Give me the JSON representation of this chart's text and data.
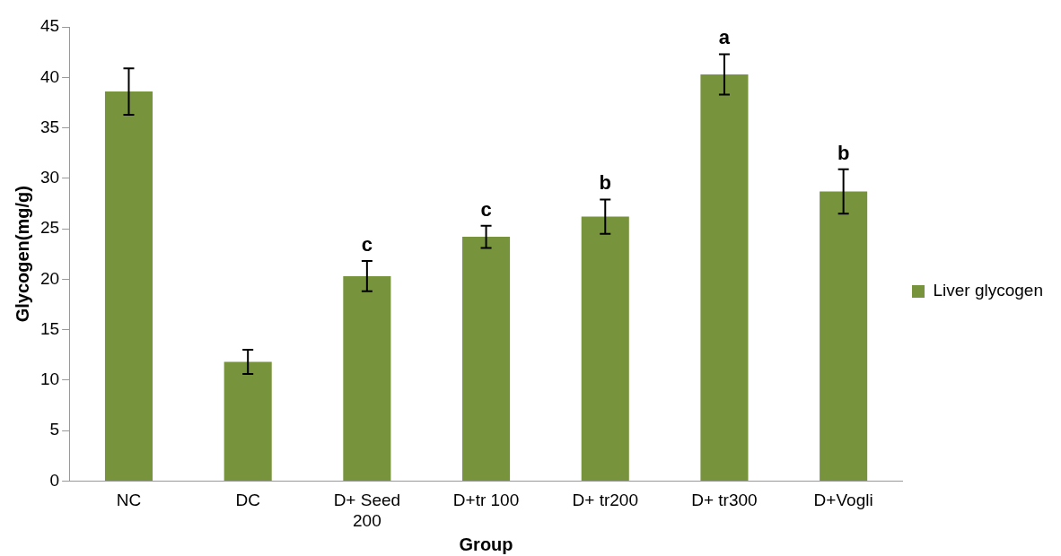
{
  "chart_data": {
    "type": "bar",
    "xlabel": "Group",
    "ylabel": "Glycogen(mg/g)",
    "categories": [
      "NC",
      "DC",
      "D+ Seed 200",
      "D+tr 100",
      "D+ tr200",
      "D+ tr300",
      "D+Vogli"
    ],
    "series": [
      {
        "name": "Liver glycogen",
        "color": "#77933c",
        "values": [
          38.6,
          11.8,
          20.3,
          24.2,
          26.2,
          40.3,
          28.7
        ],
        "errors": [
          2.3,
          1.2,
          1.5,
          1.1,
          1.7,
          2.0,
          2.2
        ],
        "value_labels": [
          null,
          null,
          "c",
          "c",
          "b",
          "a",
          "b"
        ]
      }
    ],
    "ylim": [
      0,
      45
    ],
    "yticks": [
      0,
      5,
      10,
      15,
      20,
      25,
      30,
      35,
      40,
      45
    ],
    "grid": false,
    "legend": "right"
  }
}
